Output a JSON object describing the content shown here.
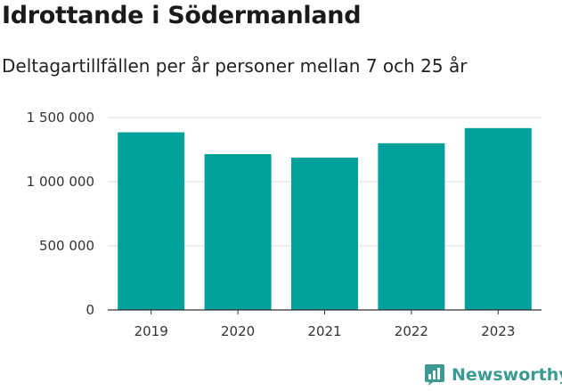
{
  "chart_data": {
    "type": "bar",
    "title": "Idrottande i Södermanland",
    "subtitle": "Deltagartillfällen per år personer mellan 7 och 25 år",
    "categories": [
      "2019",
      "2020",
      "2021",
      "2022",
      "2023"
    ],
    "values": [
      1385000,
      1215000,
      1188000,
      1300000,
      1418000
    ],
    "ylim": [
      0,
      1500000
    ],
    "yticks": [
      0,
      500000,
      1000000,
      1500000
    ],
    "ytick_labels": [
      "0",
      "500 000",
      "1 000 000",
      "1 500 000"
    ],
    "xlabel": "",
    "ylabel": "",
    "grid": true,
    "bar_color": "#00A19A"
  },
  "brand": {
    "name": "Newsworthy",
    "color": "#3B9B92",
    "icon": "newsworthy-logo-icon"
  }
}
